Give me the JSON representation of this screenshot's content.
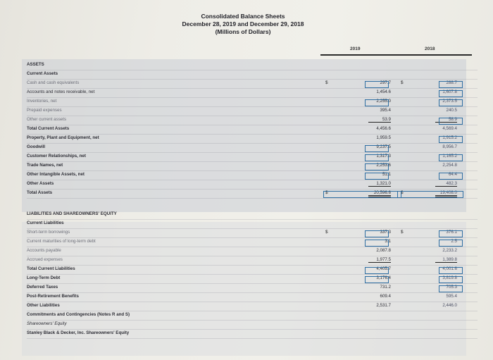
{
  "header": {
    "line1": "Consolidated Balance Sheets",
    "line2": "December 28, 2019 and December 29, 2018",
    "line3": "(Millions of Dollars)"
  },
  "columns": {
    "y2019": "2019",
    "y2018": "2018"
  },
  "currency_symbol": "$",
  "rows": [
    {
      "label": "ASSETS",
      "v2019": "",
      "v2018": ""
    },
    {
      "label": "Current Assets",
      "v2019": "",
      "v2018": ""
    },
    {
      "label": "Cash and cash equivalents",
      "v2019": "297.7",
      "v2018": "288.7"
    },
    {
      "label": "Accounts and notes receivable, net",
      "v2019": "1,454.6",
      "v2018": "1,607.8"
    },
    {
      "label": "Inventories, net",
      "v2019": "2,255.0",
      "v2018": "2,373.5"
    },
    {
      "label": "Prepaid expenses",
      "v2019": "395.4",
      "v2018": "240.5"
    },
    {
      "label": "Other current assets",
      "v2019": "53.9",
      "v2018": "58.9"
    },
    {
      "label": "Total Current Assets",
      "v2019": "4,456.6",
      "v2018": "4,569.4"
    },
    {
      "label": "Property, Plant and Equipment, net",
      "v2019": "1,959.5",
      "v2018": "1,915.2"
    },
    {
      "label": "Goodwill",
      "v2019": "9,237.5",
      "v2018": "8,956.7"
    },
    {
      "label": "Customer Relationships, net",
      "v2019": "1,317.3",
      "v2018": "1,165.2"
    },
    {
      "label": "Trade Names, net",
      "v2019": "2,253.6",
      "v2018": "2,254.8"
    },
    {
      "label": "Other Intangible Assets, net",
      "v2019": "51.1",
      "v2018": "64.4"
    },
    {
      "label": "Other Assets",
      "v2019": "1,321.0",
      "v2018": "482.3"
    },
    {
      "label": "Total Assets",
      "v2019": "20,596.6",
      "v2018": "19,408.0"
    },
    {
      "label": "LIABILITIES AND SHAREOWNERS' EQUITY",
      "v2019": "",
      "v2018": ""
    },
    {
      "label": "Current Liabilities",
      "v2019": "",
      "v2018": ""
    },
    {
      "label": "Short-term borrowings",
      "v2019": "337.3",
      "v2018": "376.1"
    },
    {
      "label": "Current maturities of long-term debt",
      "v2019": "3.1",
      "v2018": "2.5"
    },
    {
      "label": "Accounts payable",
      "v2019": "2,087.8",
      "v2018": "2,233.2"
    },
    {
      "label": "Accrued expenses",
      "v2019": "1,977.5",
      "v2018": "1,389.8"
    },
    {
      "label": "Total Current Liabilities",
      "v2019": "4,405.7",
      "v2018": "4,001.6"
    },
    {
      "label": "Long-Term Debt",
      "v2019": "3,176.4",
      "v2018": "3,819.8"
    },
    {
      "label": "Deferred Taxes",
      "v2019": "731.2",
      "v2018": "705.3"
    },
    {
      "label": "Post-Retirement Benefits",
      "v2019": "609.4",
      "v2018": "595.4"
    },
    {
      "label": "Other Liabilities",
      "v2019": "2,531.7",
      "v2018": "2,446.0"
    },
    {
      "label": "Commitments and Contingencies (Notes R and S)",
      "v2019": "",
      "v2018": ""
    },
    {
      "label": "Shareowners' Equity",
      "v2019": "",
      "v2018": ""
    },
    {
      "label": "Stanley Black & Decker, Inc. Shareowners' Equity",
      "v2019": "",
      "v2018": ""
    }
  ]
}
